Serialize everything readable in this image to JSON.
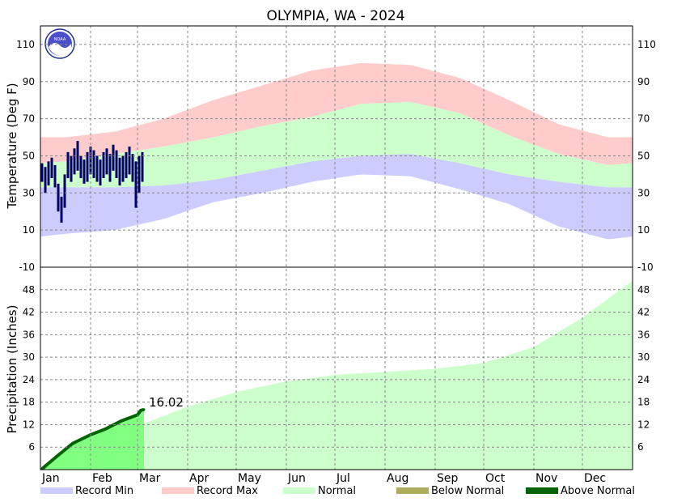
{
  "chart_data": {
    "type": "area",
    "title": "OLYMPIA, WA - 2024",
    "months": [
      "Jan",
      "Feb",
      "Mar",
      "Apr",
      "May",
      "Jun",
      "Jul",
      "Aug",
      "Sep",
      "Oct",
      "Nov",
      "Dec"
    ],
    "temperature": {
      "ylabel": "Temperature (Deg F)",
      "ylim": [
        -10,
        120
      ],
      "ticks": [
        -10,
        10,
        30,
        50,
        70,
        90,
        110
      ],
      "grid": true,
      "normal_high_by_month": [
        47,
        51,
        55,
        60,
        66,
        71,
        78,
        79,
        73,
        61,
        51,
        45
      ],
      "normal_low_by_month": [
        33,
        33,
        34,
        37,
        42,
        47,
        50,
        51,
        46,
        40,
        36,
        33
      ],
      "record_max_by_month": [
        60,
        63,
        70,
        80,
        88,
        96,
        100,
        99,
        92,
        80,
        67,
        60
      ],
      "record_min_by_month": [
        8,
        10,
        16,
        25,
        30,
        36,
        40,
        39,
        32,
        24,
        12,
        5
      ],
      "observed_2024": {
        "days": [
          1,
          3,
          5,
          7,
          9,
          11,
          13,
          15,
          17,
          19,
          21,
          23,
          25,
          27,
          29,
          31,
          33,
          35,
          37,
          39,
          41,
          43,
          45,
          47,
          49,
          51,
          53,
          55,
          57,
          59,
          61,
          63
        ],
        "highs": [
          46,
          44,
          47,
          49,
          45,
          35,
          28,
          40,
          52,
          50,
          54,
          58,
          50,
          48,
          52,
          55,
          53,
          50,
          48,
          52,
          54,
          51,
          56,
          53,
          49,
          50,
          52,
          55,
          51,
          47,
          50,
          52
        ],
        "lows": [
          36,
          30,
          34,
          38,
          33,
          20,
          14,
          22,
          38,
          36,
          40,
          42,
          38,
          35,
          36,
          40,
          38,
          36,
          34,
          38,
          40,
          36,
          42,
          38,
          34,
          36,
          38,
          40,
          36,
          22,
          30,
          36
        ]
      }
    },
    "precipitation": {
      "ylabel": "Precipitation (Inches)",
      "ylim": [
        0,
        54
      ],
      "ticks": [
        6,
        12,
        18,
        24,
        30,
        36,
        42,
        48
      ],
      "grid": true,
      "normal_cumulative_end_of_month": [
        6.1,
        11.8,
        16.9,
        20.8,
        23.6,
        25.3,
        26.1,
        26.9,
        28.5,
        32.7,
        40.7,
        50.4
      ],
      "observed_2024_cumulative": {
        "days": [
          1,
          10,
          20,
          31,
          40,
          50,
          60,
          62,
          64
        ],
        "values": [
          0.2,
          3.5,
          7.0,
          9.3,
          10.8,
          13.0,
          14.6,
          15.8,
          16.02
        ]
      },
      "annotation": "16.02"
    },
    "legend": {
      "placement": "bottom",
      "items": [
        {
          "label": "Record Min",
          "color": "#ccccff"
        },
        {
          "label": "Record Max",
          "color": "#ffcccc"
        },
        {
          "label": "Normal",
          "color": "#ccffcc"
        },
        {
          "label": "Below Normal",
          "color": "#adad5c"
        },
        {
          "label": "Above Normal",
          "color": "#006400"
        }
      ]
    },
    "colors": {
      "observed_temp": "#000066",
      "observed_precip_fill": "#80ff80",
      "grid": "#888888"
    }
  }
}
